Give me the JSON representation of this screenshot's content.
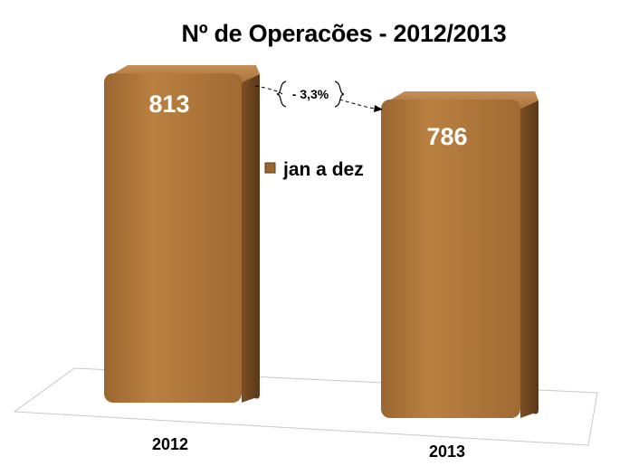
{
  "chart_data": {
    "type": "bar",
    "title": "Nº de Operacões  - 2012/2013",
    "categories": [
      "2012",
      "2013"
    ],
    "series": [
      {
        "name": "jan a dez",
        "values": [
          813,
          786
        ]
      }
    ],
    "data_labels": [
      "813",
      "786"
    ],
    "annotation": "- 3,3%",
    "legend_position": "center",
    "ylim": [
      0,
      900
    ],
    "grid": false,
    "colors": {
      "bar_front": "#b27a3c",
      "bar_side": "#6a4420",
      "bar_top": "#c99459",
      "label": "#ffffff"
    }
  }
}
